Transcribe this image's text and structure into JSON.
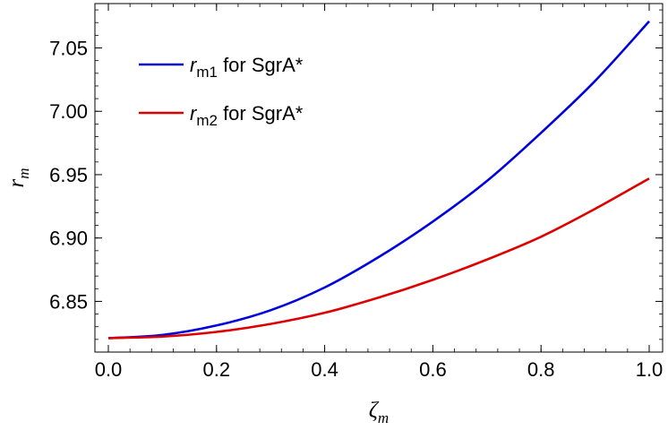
{
  "chart_data": {
    "type": "line",
    "xlabel": "ζ",
    "xlabel_sub": "m",
    "ylabel": "r",
    "ylabel_sub": "m",
    "xlim": [
      0.0,
      1.0
    ],
    "ylim": [
      6.81,
      7.085
    ],
    "xticks": [
      0.0,
      0.2,
      0.4,
      0.6,
      0.8,
      1.0
    ],
    "xtick_labels": [
      "0.0",
      "0.2",
      "0.4",
      "0.6",
      "0.8",
      "1.0"
    ],
    "yticks": [
      6.85,
      6.9,
      6.95,
      7.0,
      7.05
    ],
    "ytick_labels": [
      "6.85",
      "6.90",
      "6.95",
      "7.00",
      "7.05"
    ],
    "grid": false,
    "legend_position": "top-left",
    "series": [
      {
        "name": "r_m1 for SgrA*",
        "legend_symbol": "r",
        "legend_sub": "m1",
        "legend_text": " for SgrA*",
        "color": "#0000dd",
        "x": [
          0.0,
          0.1,
          0.2,
          0.3,
          0.4,
          0.5,
          0.6,
          0.7,
          0.8,
          0.9,
          1.0
        ],
        "y": [
          6.821,
          6.8235,
          6.831,
          6.843,
          6.861,
          6.885,
          6.913,
          6.945,
          6.983,
          7.024,
          7.071
        ]
      },
      {
        "name": "r_m2 for SgrA*",
        "legend_symbol": "r",
        "legend_sub": "m2",
        "legend_text": " for SgrA*",
        "color": "#dd0000",
        "x": [
          0.0,
          0.1,
          0.2,
          0.3,
          0.4,
          0.5,
          0.6,
          0.7,
          0.8,
          0.9,
          1.0
        ],
        "y": [
          6.821,
          6.8222,
          6.8259,
          6.8322,
          6.841,
          6.853,
          6.867,
          6.883,
          6.901,
          6.923,
          6.947
        ]
      }
    ]
  }
}
